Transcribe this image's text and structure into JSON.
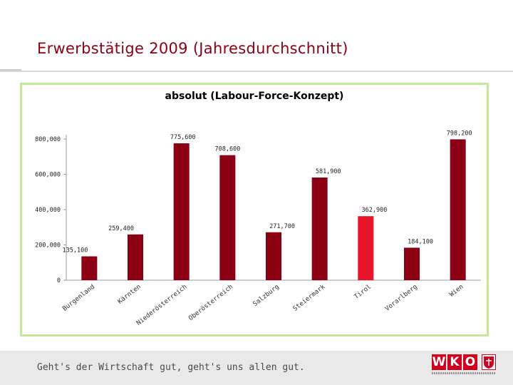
{
  "slide": {
    "title": "Erwerbstätige 2009 (Jahresdurchschnitt)",
    "slogan": "Geht's der Wirtschaft gut, geht's uns allen gut.",
    "logo_text": [
      "W",
      "K",
      "O"
    ]
  },
  "colors": {
    "title": "#8b0012",
    "bar": "#8b0012",
    "bar_highlight": "#e8142a",
    "frame": "#c6e89a",
    "logo": "#d0001c"
  },
  "chart_data": {
    "type": "bar",
    "title": "absolut (Labour-Force-Konzept)",
    "xlabel": "",
    "ylabel": "",
    "categories": [
      "Burgenland",
      "Kärnten",
      "Niederösterreich",
      "Oberösterreich",
      "Salzburg",
      "Steiermark",
      "Tirol",
      "Vorarlberg",
      "Wien"
    ],
    "values": [
      135100,
      259400,
      775600,
      708600,
      271700,
      581900,
      362900,
      184100,
      798200
    ],
    "value_labels": [
      "135,100",
      "259,400",
      "775,600",
      "708,600",
      "271,700",
      "581,900",
      "362,900",
      "184,100",
      "798,200"
    ],
    "highlight_index": 6,
    "ylim": [
      0,
      800000
    ],
    "yticks": [
      0,
      200000,
      400000,
      600000,
      800000
    ],
    "ytick_labels": [
      "0",
      "200,000",
      "400,000",
      "600,000",
      "800,000"
    ],
    "grid": false,
    "legend": "none"
  }
}
